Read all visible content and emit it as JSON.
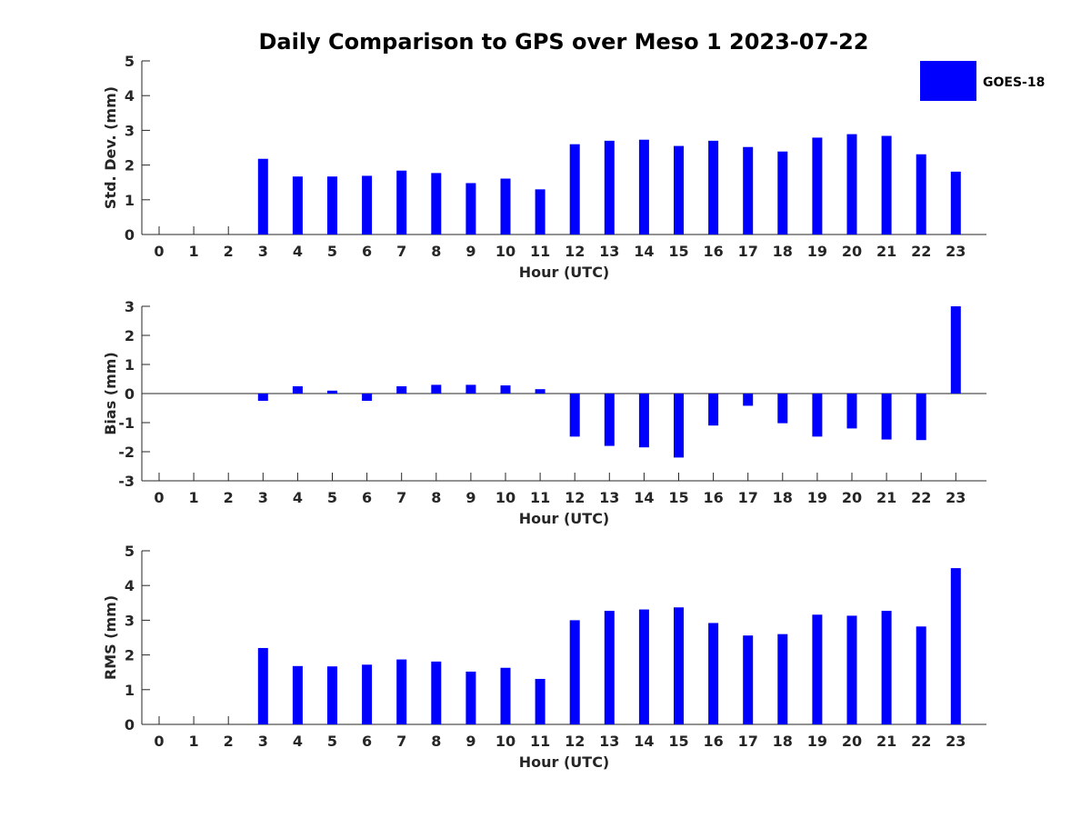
{
  "chart_data": {
    "type": "bar",
    "title": "Daily Comparison to GPS over Meso 1 2023-07-22",
    "legend": {
      "label": "GOES-18",
      "color": "#0000ff",
      "placement": "top-right"
    },
    "x": [
      0,
      1,
      2,
      3,
      4,
      5,
      6,
      7,
      8,
      9,
      10,
      11,
      12,
      13,
      14,
      15,
      16,
      17,
      18,
      19,
      20,
      21,
      22,
      23
    ],
    "xlabel": "Hour (UTC)",
    "panels": [
      {
        "id": "stddev",
        "ylabel": "Std. Dev. (mm)",
        "ylim": [
          0,
          5
        ],
        "yticks": [
          0,
          1,
          2,
          3,
          4,
          5
        ],
        "values": [
          null,
          null,
          null,
          2.18,
          1.67,
          1.67,
          1.69,
          1.84,
          1.77,
          1.48,
          1.61,
          1.3,
          2.6,
          2.7,
          2.73,
          2.55,
          2.7,
          2.52,
          2.39,
          2.79,
          2.89,
          2.84,
          2.31,
          1.81
        ]
      },
      {
        "id": "bias",
        "ylabel": "Bias (mm)",
        "ylim": [
          -3,
          3
        ],
        "yticks": [
          -3,
          -2,
          -1,
          0,
          1,
          2,
          3
        ],
        "values": [
          null,
          null,
          null,
          -0.25,
          0.25,
          0.1,
          -0.25,
          0.25,
          0.3,
          0.3,
          0.28,
          0.15,
          -1.48,
          -1.8,
          -1.85,
          -2.2,
          -1.1,
          -0.42,
          -1.02,
          -1.48,
          -1.2,
          -1.58,
          -1.6,
          3.0
        ]
      },
      {
        "id": "rms",
        "ylabel": "RMS (mm)",
        "ylim": [
          0,
          5
        ],
        "yticks": [
          0,
          1,
          2,
          3,
          4,
          5
        ],
        "values": [
          null,
          null,
          null,
          2.2,
          1.68,
          1.67,
          1.72,
          1.87,
          1.81,
          1.52,
          1.63,
          1.31,
          3.0,
          3.27,
          3.31,
          3.37,
          2.92,
          2.56,
          2.6,
          3.16,
          3.13,
          3.27,
          2.82,
          4.5
        ]
      }
    ]
  }
}
